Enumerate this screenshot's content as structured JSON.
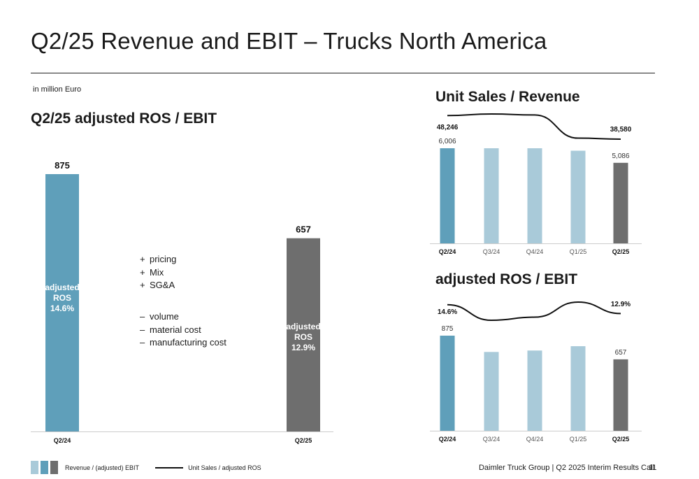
{
  "header": {
    "title": "Q2/25 Revenue and EBIT – Trucks North America"
  },
  "unit_note": "in million Euro",
  "left_panel": {
    "heading": "Q2/25 adjusted ROS / EBIT",
    "positives": [
      "pricing",
      "Mix",
      "SG&A"
    ],
    "negatives": [
      "volume",
      "material cost",
      "manufacturing cost"
    ],
    "plus_sign": "+",
    "minus_sign": "–"
  },
  "right_top": {
    "heading": "Unit Sales / Revenue"
  },
  "right_bottom": {
    "heading": "adjusted ROS / EBIT"
  },
  "legend": {
    "bars_label": "Revenue / (adjusted) EBIT",
    "line_label": "Unit Sales / adjusted ROS"
  },
  "footer": {
    "text": "Daimler Truck Group | Q2 2025 Interim Results Call",
    "page": "11"
  },
  "colors": {
    "q2_24": "#5f9fba",
    "mid": "#a9cad9",
    "q2_25": "#6e6e6e",
    "line": "#111111",
    "axis": "#cccccc"
  },
  "chart_data": [
    {
      "type": "bar",
      "categories": [
        "Q2/24",
        "Q2/25"
      ],
      "values": [
        875,
        657
      ],
      "value_labels": [
        "875",
        "657"
      ],
      "bar_texts": [
        [
          "adjusted",
          "ROS",
          "14.6%"
        ],
        [
          "adjusted",
          "ROS",
          "12.9%"
        ]
      ],
      "ylim": [
        0,
        875
      ]
    },
    {
      "type": "bar",
      "title": "Unit Sales / Revenue",
      "categories": [
        "Q2/24",
        "Q3/24",
        "Q4/24",
        "Q1/25",
        "Q2/25"
      ],
      "values": [
        6006,
        6006,
        6006,
        5850,
        5086
      ],
      "value_labels": [
        "6,006",
        "",
        "",
        "",
        "5,086"
      ],
      "line_series": {
        "values": [
          48246,
          48900,
          48500,
          39000,
          38580
        ],
        "labels": [
          "48,246",
          "",
          "",
          "",
          "38,580"
        ]
      }
    },
    {
      "type": "bar",
      "title": "adjusted ROS / EBIT",
      "categories": [
        "Q2/24",
        "Q3/24",
        "Q4/24",
        "Q1/25",
        "Q2/25"
      ],
      "values": [
        875,
        725,
        738,
        778,
        657
      ],
      "value_labels": [
        "875",
        "",
        "",
        "",
        "657"
      ],
      "line_series": {
        "values": [
          14.6,
          11.6,
          12.2,
          15.1,
          12.9
        ],
        "labels": [
          "14.6%",
          "",
          "",
          "",
          "12.9%"
        ]
      }
    }
  ]
}
